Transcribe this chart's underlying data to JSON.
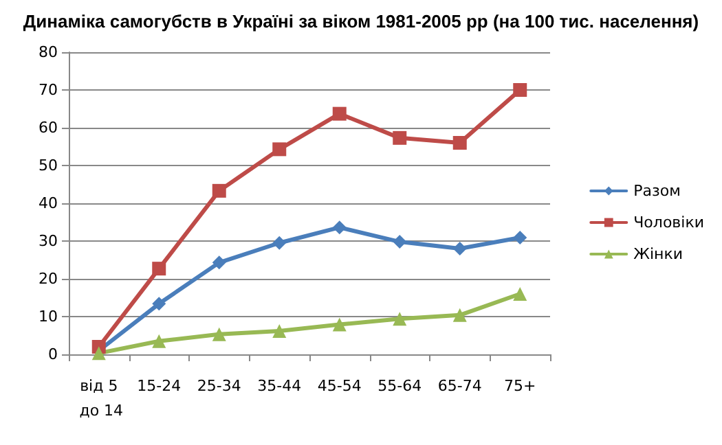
{
  "chart_data": {
    "type": "line",
    "title": "Динаміка самогубств в Україні за віком 1981-2005 рр (на 100 тис. населення)",
    "categories": [
      "від 5 до 14",
      "15-24",
      "25-34",
      "35-44",
      "45-54",
      "55-64",
      "65-74",
      "75+"
    ],
    "series": [
      {
        "name": "Разом",
        "color": "#4a7ebb",
        "marker": "diamond",
        "values": [
          1,
          13.4,
          24.3,
          29.5,
          33.6,
          29.8,
          28,
          30.9
        ]
      },
      {
        "name": "Чоловіки",
        "color": "#be4b48",
        "marker": "square",
        "values": [
          2,
          22.7,
          43.3,
          54.3,
          63.7,
          57.3,
          56,
          70
        ]
      },
      {
        "name": "Жінки",
        "color": "#98b954",
        "marker": "triangle",
        "values": [
          0.3,
          3.5,
          5.3,
          6.2,
          7.9,
          9.4,
          10.4,
          16
        ]
      }
    ],
    "ylim": [
      0,
      80
    ],
    "yticks": [
      0,
      10,
      20,
      30,
      40,
      50,
      60,
      70,
      80
    ],
    "grid": "y",
    "legend": "right",
    "line_style": "solid"
  }
}
